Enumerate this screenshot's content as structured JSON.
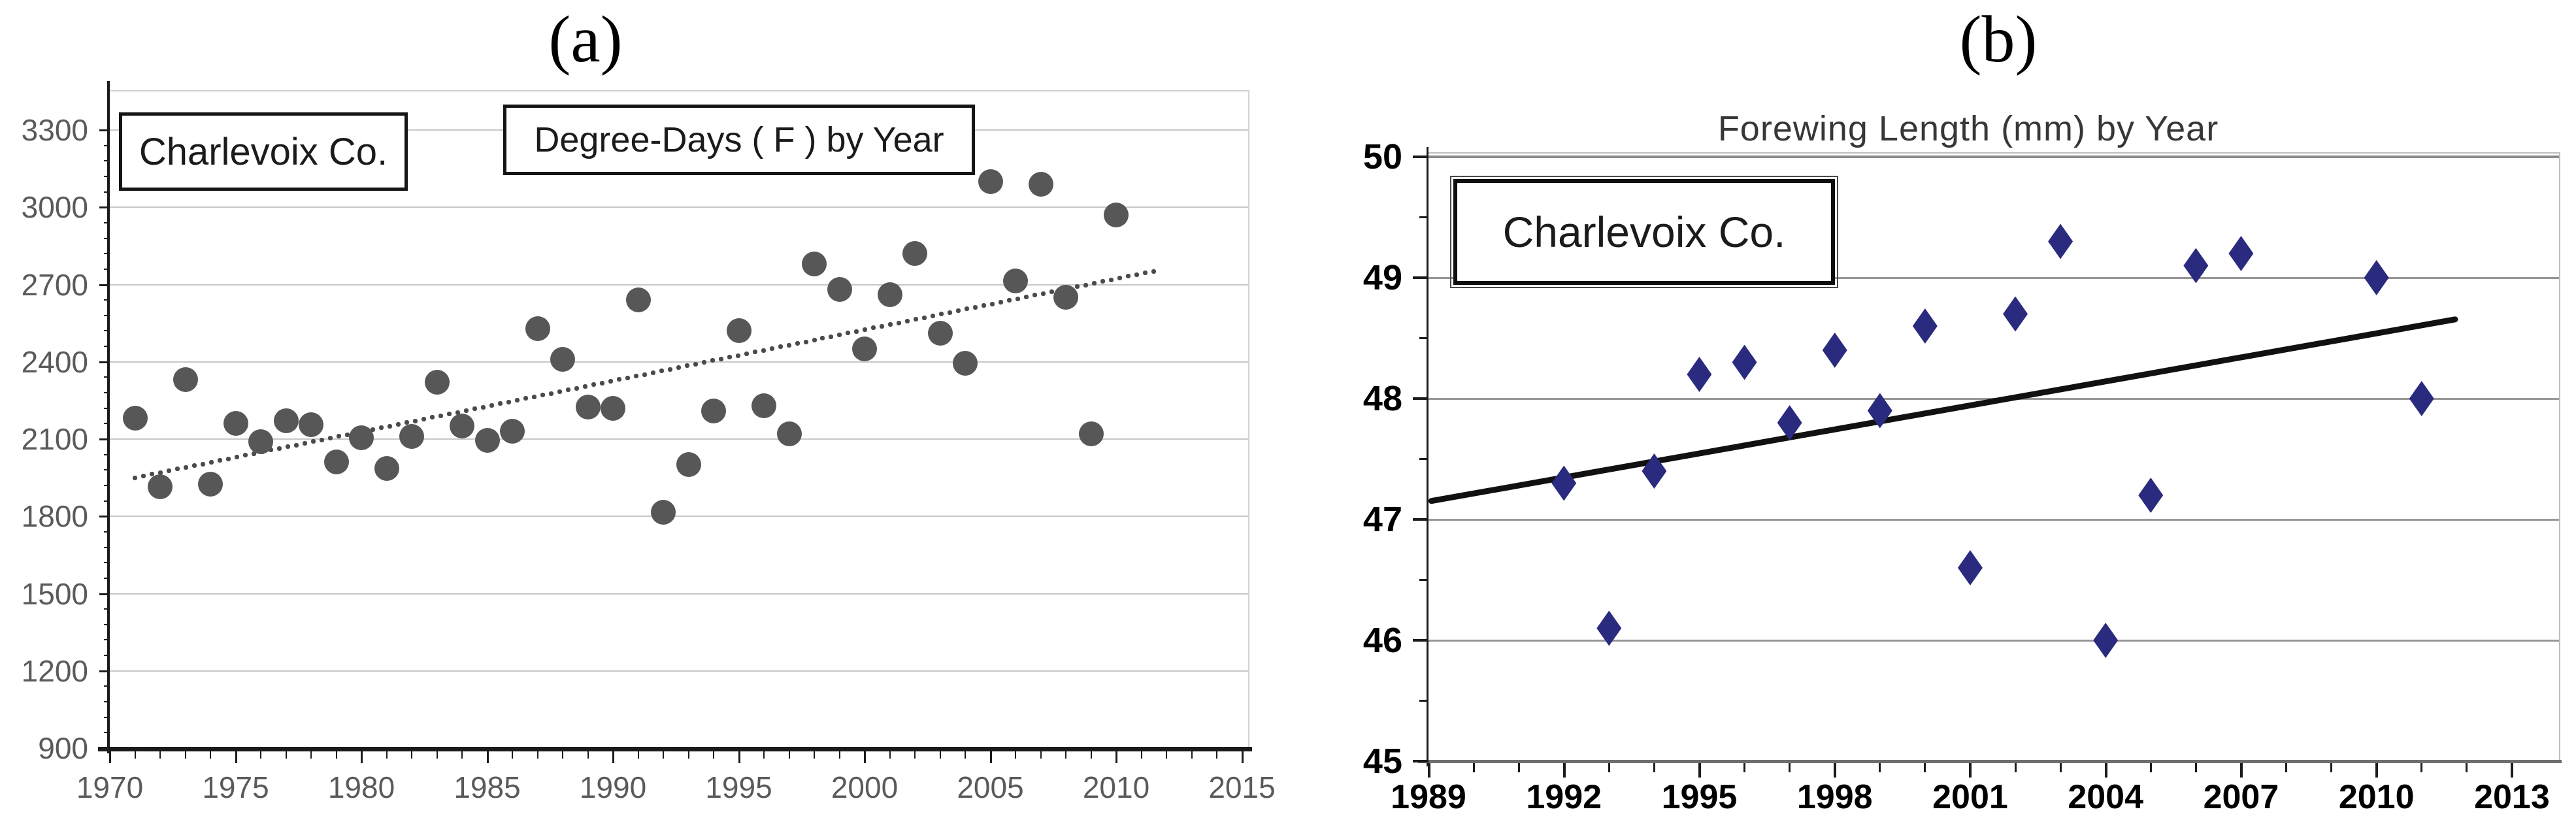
{
  "figure": {
    "panel_a_label": "(a)",
    "panel_b_label": "(b)"
  },
  "chart_data": [
    {
      "type": "scatter",
      "panel": "a",
      "title": "Degree-Days ( F ) by Year",
      "annotation_box": "Charlevoix Co.",
      "legend": "none",
      "grid": "horizontal",
      "xlim": [
        1970,
        2015.8
      ],
      "ylim": [
        900,
        3300
      ],
      "x_tick_labels": [
        "1970",
        "1975",
        "1980",
        "1985",
        "1990",
        "1995",
        "2000",
        "2005",
        "2010",
        "2015"
      ],
      "y_tick_labels": [
        "900",
        "1200",
        "1500",
        "1800",
        "2100",
        "2400",
        "2700",
        "3000",
        "3300"
      ],
      "marker": {
        "shape": "circle",
        "color": "#575757"
      },
      "trendline": {
        "style": "dotted",
        "color": "#4a4a4a",
        "from": {
          "x": 1971,
          "y": 1950
        },
        "to": {
          "x": 2011.5,
          "y": 2752
        }
      },
      "points": [
        {
          "x": 1971,
          "y": 2180
        },
        {
          "x": 1972,
          "y": 1915
        },
        {
          "x": 1973,
          "y": 2330
        },
        {
          "x": 1974,
          "y": 1925
        },
        {
          "x": 1975,
          "y": 2160
        },
        {
          "x": 1976,
          "y": 2090
        },
        {
          "x": 1977,
          "y": 2170
        },
        {
          "x": 1978,
          "y": 2155
        },
        {
          "x": 1979,
          "y": 2010
        },
        {
          "x": 1980,
          "y": 2105
        },
        {
          "x": 1981,
          "y": 1985
        },
        {
          "x": 1982,
          "y": 2110
        },
        {
          "x": 1983,
          "y": 2320
        },
        {
          "x": 1984,
          "y": 2150
        },
        {
          "x": 1985,
          "y": 2095
        },
        {
          "x": 1986,
          "y": 2130
        },
        {
          "x": 1987,
          "y": 2530
        },
        {
          "x": 1988,
          "y": 2410
        },
        {
          "x": 1989,
          "y": 2225
        },
        {
          "x": 1990,
          "y": 2220
        },
        {
          "x": 1991,
          "y": 2640
        },
        {
          "x": 1992,
          "y": 1815
        },
        {
          "x": 1993,
          "y": 2000
        },
        {
          "x": 1994,
          "y": 2210
        },
        {
          "x": 1995,
          "y": 2520
        },
        {
          "x": 1996,
          "y": 2230
        },
        {
          "x": 1997,
          "y": 2120
        },
        {
          "x": 1998,
          "y": 2780
        },
        {
          "x": 1999,
          "y": 2680
        },
        {
          "x": 2000,
          "y": 2450
        },
        {
          "x": 2001,
          "y": 2660
        },
        {
          "x": 2002,
          "y": 2820
        },
        {
          "x": 2003,
          "y": 2510
        },
        {
          "x": 2004,
          "y": 2395
        },
        {
          "x": 2005,
          "y": 3100
        },
        {
          "x": 2006,
          "y": 2715
        },
        {
          "x": 2007,
          "y": 3090
        },
        {
          "x": 2008,
          "y": 2650
        },
        {
          "x": 2009,
          "y": 2120
        },
        {
          "x": 2010,
          "y": 2970
        }
      ]
    },
    {
      "type": "scatter",
      "panel": "b",
      "title": "Forewing Length (mm) by Year",
      "annotation_box": "Charlevoix Co.",
      "legend": "none",
      "grid": "horizontal",
      "xlim": [
        1989,
        2013.9
      ],
      "ylim": [
        45,
        50
      ],
      "x_tick_labels": [
        "1989",
        "1992",
        "1995",
        "1998",
        "2001",
        "2004",
        "2007",
        "2010",
        "2013"
      ],
      "y_tick_labels": [
        "45",
        "46",
        "47",
        "48",
        "49",
        "50"
      ],
      "marker": {
        "shape": "diamond",
        "color": "#2a2b7e"
      },
      "trendline": {
        "style": "solid",
        "color": "#111111",
        "from": {
          "x": 1989,
          "y": 47.15
        },
        "to": {
          "x": 2011.8,
          "y": 48.66
        }
      },
      "points": [
        {
          "x": 1992,
          "y": 47.3
        },
        {
          "x": 1993,
          "y": 46.1
        },
        {
          "x": 1994,
          "y": 47.4
        },
        {
          "x": 1995,
          "y": 48.2
        },
        {
          "x": 1996,
          "y": 48.3
        },
        {
          "x": 1997,
          "y": 47.8
        },
        {
          "x": 1998,
          "y": 48.4
        },
        {
          "x": 1999,
          "y": 47.9
        },
        {
          "x": 2000,
          "y": 48.6
        },
        {
          "x": 2001,
          "y": 46.6
        },
        {
          "x": 2002,
          "y": 48.7
        },
        {
          "x": 2003,
          "y": 49.3
        },
        {
          "x": 2004,
          "y": 46.0
        },
        {
          "x": 2005,
          "y": 47.2
        },
        {
          "x": 2006,
          "y": 49.1
        },
        {
          "x": 2007,
          "y": 49.2
        },
        {
          "x": 2010,
          "y": 49.0
        },
        {
          "x": 2011,
          "y": 48.0
        }
      ]
    }
  ]
}
